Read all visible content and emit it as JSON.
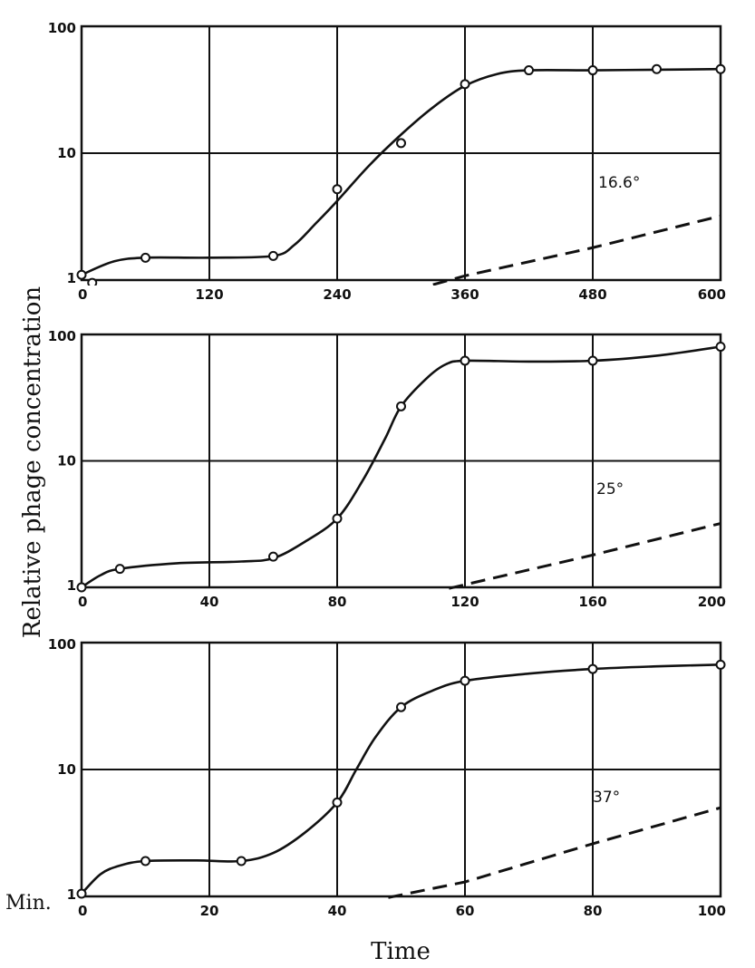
{
  "figure": {
    "ylabel": "Relative phage concentration",
    "xlabel": "Time",
    "time_unit_label": "Min."
  },
  "chart_data": [
    {
      "type": "line",
      "annotation": "16.6°",
      "ylog": true,
      "ylim": [
        1,
        100
      ],
      "yticks": [
        1,
        10,
        100
      ],
      "xlim": [
        0,
        600
      ],
      "xticks": [
        0,
        120,
        240,
        360,
        480,
        600
      ],
      "grid": true,
      "series": [
        {
          "style": "solid-with-markers",
          "points": [
            [
              0,
              1.1
            ],
            [
              10,
              0.95
            ],
            [
              60,
              1.5
            ],
            [
              180,
              1.55
            ],
            [
              240,
              5.2
            ],
            [
              300,
              12
            ],
            [
              360,
              35
            ],
            [
              420,
              45
            ],
            [
              480,
              45
            ],
            [
              540,
              46
            ],
            [
              600,
              46
            ]
          ],
          "curve": [
            [
              0,
              1.1
            ],
            [
              30,
              1.4
            ],
            [
              60,
              1.5
            ],
            [
              120,
              1.5
            ],
            [
              180,
              1.55
            ],
            [
              200,
              1.9
            ],
            [
              220,
              2.8
            ],
            [
              240,
              4.2
            ],
            [
              270,
              8
            ],
            [
              300,
              14
            ],
            [
              330,
              23
            ],
            [
              360,
              34
            ],
            [
              390,
              42
            ],
            [
              420,
              45
            ],
            [
              480,
              45
            ],
            [
              540,
              45.5
            ],
            [
              600,
              46
            ]
          ]
        },
        {
          "style": "dashed",
          "points": [
            [
              330,
              0.92
            ],
            [
              360,
              1.08
            ],
            [
              480,
              1.8
            ],
            [
              600,
              3.2
            ]
          ]
        }
      ]
    },
    {
      "type": "line",
      "annotation": "25°",
      "ylog": true,
      "ylim": [
        1,
        100
      ],
      "yticks": [
        1,
        10,
        100
      ],
      "xlim": [
        0,
        200
      ],
      "xticks": [
        0,
        40,
        80,
        120,
        160,
        200
      ],
      "grid": true,
      "series": [
        {
          "style": "solid-with-markers",
          "points": [
            [
              0,
              1
            ],
            [
              12,
              1.4
            ],
            [
              60,
              1.75
            ],
            [
              80,
              3.5
            ],
            [
              100,
              27
            ],
            [
              120,
              62
            ],
            [
              160,
              62
            ],
            [
              200,
              80
            ]
          ],
          "curve": [
            [
              0,
              1
            ],
            [
              6,
              1.25
            ],
            [
              12,
              1.4
            ],
            [
              30,
              1.55
            ],
            [
              50,
              1.6
            ],
            [
              60,
              1.7
            ],
            [
              70,
              2.3
            ],
            [
              80,
              3.5
            ],
            [
              88,
              7
            ],
            [
              95,
              15
            ],
            [
              100,
              27
            ],
            [
              108,
              45
            ],
            [
              114,
              58
            ],
            [
              120,
              62
            ],
            [
              140,
              61
            ],
            [
              160,
              62
            ],
            [
              180,
              68
            ],
            [
              200,
              80
            ]
          ]
        },
        {
          "style": "dashed",
          "points": [
            [
              115,
              0.98
            ],
            [
              120,
              1.05
            ],
            [
              160,
              1.8
            ],
            [
              200,
              3.2
            ]
          ]
        }
      ]
    },
    {
      "type": "line",
      "annotation": "37°",
      "ylog": true,
      "ylim": [
        1,
        100
      ],
      "yticks": [
        1,
        10,
        100
      ],
      "xlim": [
        0,
        100
      ],
      "xticks": [
        0,
        20,
        40,
        60,
        80,
        100
      ],
      "grid": true,
      "series": [
        {
          "style": "solid-with-markers",
          "points": [
            [
              0,
              1.05
            ],
            [
              10,
              1.9
            ],
            [
              25,
              1.9
            ],
            [
              40,
              5.5
            ],
            [
              50,
              31
            ],
            [
              60,
              50
            ],
            [
              80,
              62
            ],
            [
              100,
              67
            ]
          ],
          "curve": [
            [
              0,
              1.05
            ],
            [
              3,
              1.5
            ],
            [
              6,
              1.75
            ],
            [
              10,
              1.9
            ],
            [
              18,
              1.92
            ],
            [
              25,
              1.9
            ],
            [
              30,
              2.2
            ],
            [
              35,
              3.2
            ],
            [
              40,
              5.5
            ],
            [
              43,
              10
            ],
            [
              46,
              18
            ],
            [
              50,
              31
            ],
            [
              55,
              42
            ],
            [
              60,
              50
            ],
            [
              70,
              57
            ],
            [
              80,
              62
            ],
            [
              90,
              65
            ],
            [
              100,
              67
            ]
          ]
        },
        {
          "style": "dashed",
          "points": [
            [
              48,
              0.98
            ],
            [
              60,
              1.3
            ],
            [
              80,
              2.6
            ],
            [
              100,
              5
            ]
          ]
        }
      ]
    }
  ]
}
